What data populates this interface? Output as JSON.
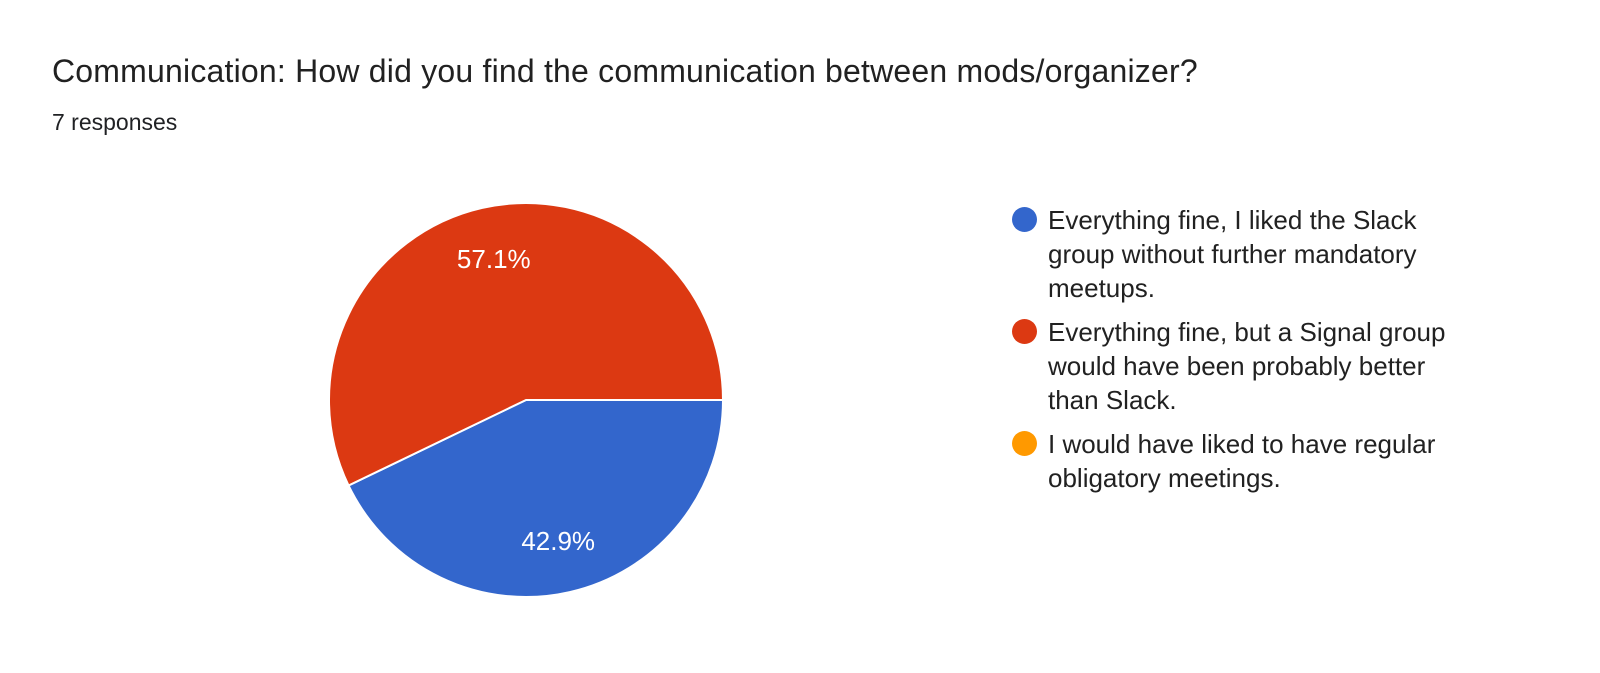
{
  "header": {
    "title": "Communication: How did you find the communication between mods/organizer?",
    "response_count": "7 responses"
  },
  "chart_data": {
    "type": "pie",
    "title": "Communication: How did you find the communication between mods/organizer?",
    "subtitle": "7 responses",
    "total_responses": 7,
    "start_angle_deg": 90,
    "direction": "clockwise",
    "legend_position": "right",
    "slice_label_color": "#ffffff",
    "slice_border_color": "#ffffff",
    "slices": [
      {
        "label": "Everything fine, I liked the Slack group without further mandatory meetups.",
        "value": 3,
        "percent": 42.9,
        "percent_label": "42.9%",
        "color": "#3366CC"
      },
      {
        "label": "Everything fine, but a Signal group would have been probably better than Slack.",
        "value": 4,
        "percent": 57.1,
        "percent_label": "57.1%",
        "color": "#DC3912"
      },
      {
        "label": "I would have liked to have regular obligatory meetings.",
        "value": 0,
        "percent": 0,
        "percent_label": "",
        "color": "#FF9900"
      }
    ]
  }
}
